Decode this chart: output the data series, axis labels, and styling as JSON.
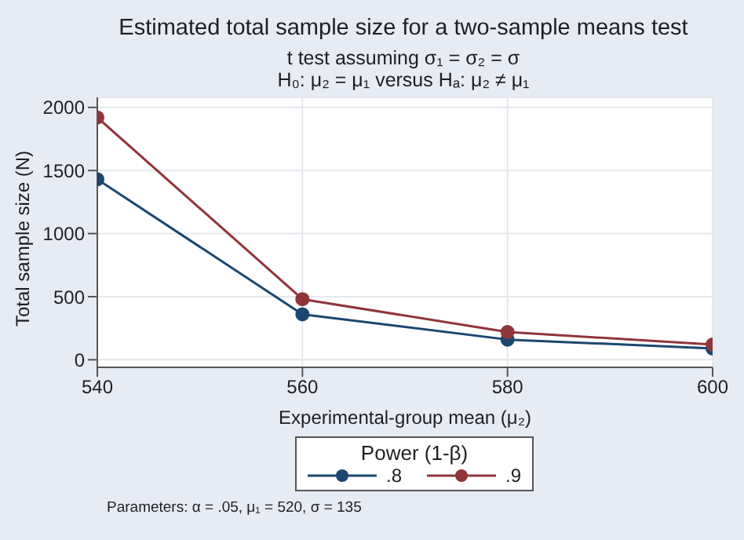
{
  "chart_data": {
    "type": "line",
    "title": "Estimated total sample size for a two-sample means test",
    "subtitle": "t test assuming σ₁ = σ₂ = σ\nH₀: μ₂ = μ₁  versus  Hₐ: μ₂ ≠ μ₁",
    "xlabel": "Experimental-group mean (μ₂)",
    "ylabel": "Total sample size (N)",
    "legend_title": "Power (1-β)",
    "annotations": [
      "Parameters: α = .05, μ₁ = 520, σ = 135"
    ],
    "x": [
      540,
      560,
      580,
      600
    ],
    "series": [
      {
        "name": ".8",
        "color": "#1a476f",
        "values": [
          1430,
          360,
          160,
          90
        ]
      },
      {
        "name": ".9",
        "color": "#90353b",
        "values": [
          1920,
          480,
          220,
          120
        ]
      }
    ],
    "xlim": [
      540,
      600
    ],
    "xticks": [
      540,
      560,
      580,
      600
    ],
    "ylim": [
      -60,
      2080
    ],
    "yticks": [
      0,
      500,
      1000,
      1500,
      2000
    ],
    "grid": true,
    "legend": "bottom",
    "marker": "circle",
    "line_style": "solid"
  }
}
